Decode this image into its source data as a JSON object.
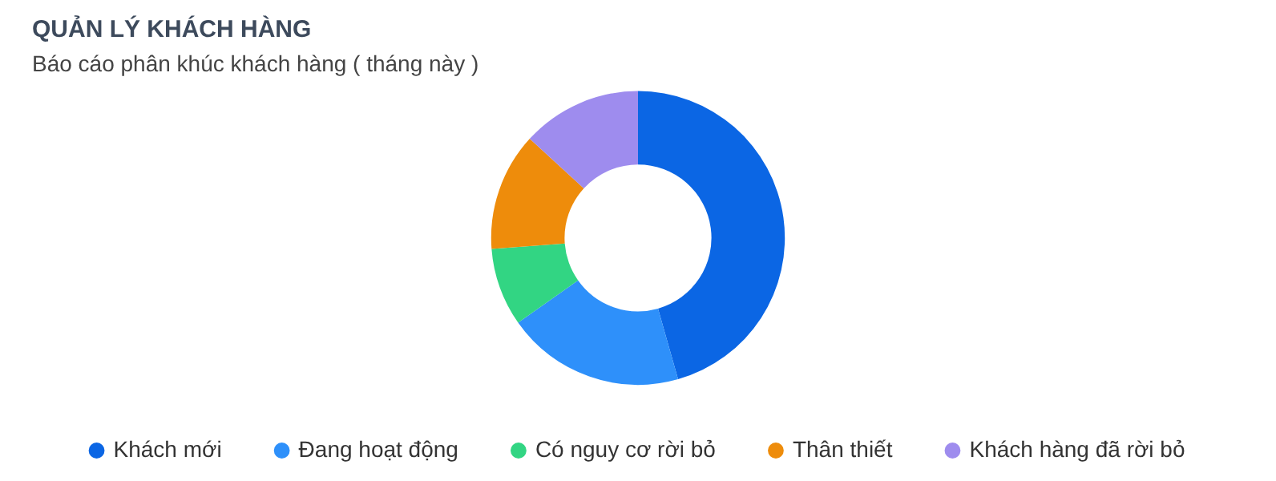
{
  "chart_data": {
    "type": "donut",
    "title": "QUẢN LÝ KHÁCH HÀNG",
    "subtitle": "Báo cáo phân khúc khách hàng ( tháng này )",
    "categories": [
      "Khách mới",
      "Đang hoạt động",
      "Có nguy cơ rời bỏ",
      "Thân thiết",
      "Khách hàng đã rời bỏ"
    ],
    "values": [
      45.6,
      19.6,
      8.6,
      13,
      13.2
    ],
    "colors": [
      "#0b66e4",
      "#2e90fa",
      "#32d583",
      "#ee8c0b",
      "#9e8cee"
    ],
    "legend": "bottom"
  }
}
